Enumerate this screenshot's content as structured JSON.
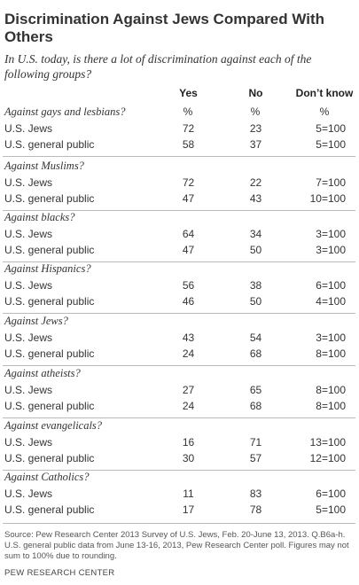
{
  "title": "Discrimination Against Jews Compared With Others",
  "subtitle": "In U.S. today, is there a lot of discrimination against each of the following groups?",
  "columns": {
    "yes": "Yes",
    "no": "No",
    "dk": "Don’t know"
  },
  "percent_row": {
    "yes": "%",
    "no": "%",
    "dk": "%"
  },
  "groups": [
    {
      "label": "Against gays and lesbians?",
      "rows": [
        {
          "name": "U.S. Jews",
          "yes": "72",
          "no": "23",
          "dk": "5=100"
        },
        {
          "name": "U.S. general public",
          "yes": "58",
          "no": "37",
          "dk": "5=100"
        }
      ]
    },
    {
      "label": "Against Muslims?",
      "rows": [
        {
          "name": "U.S. Jews",
          "yes": "72",
          "no": "22",
          "dk": "7=100"
        },
        {
          "name": "U.S. general public",
          "yes": "47",
          "no": "43",
          "dk": "10=100"
        }
      ]
    },
    {
      "label": "Against blacks?",
      "rows": [
        {
          "name": "U.S. Jews",
          "yes": "64",
          "no": "34",
          "dk": "3=100"
        },
        {
          "name": "U.S. general public",
          "yes": "47",
          "no": "50",
          "dk": "3=100"
        }
      ]
    },
    {
      "label": "Against Hispanics?",
      "rows": [
        {
          "name": "U.S. Jews",
          "yes": "56",
          "no": "38",
          "dk": "6=100"
        },
        {
          "name": "U.S. general public",
          "yes": "46",
          "no": "50",
          "dk": "4=100"
        }
      ]
    },
    {
      "label": "Against Jews?",
      "rows": [
        {
          "name": "U.S. Jews",
          "yes": "43",
          "no": "54",
          "dk": "3=100"
        },
        {
          "name": "U.S. general public",
          "yes": "24",
          "no": "68",
          "dk": "8=100"
        }
      ]
    },
    {
      "label": "Against atheists?",
      "rows": [
        {
          "name": "U.S. Jews",
          "yes": "27",
          "no": "65",
          "dk": "8=100"
        },
        {
          "name": "U.S. general public",
          "yes": "24",
          "no": "68",
          "dk": "8=100"
        }
      ]
    },
    {
      "label": "Against evangelicals?",
      "rows": [
        {
          "name": "U.S. Jews",
          "yes": "16",
          "no": "71",
          "dk": "13=100"
        },
        {
          "name": "U.S. general public",
          "yes": "30",
          "no": "57",
          "dk": "12=100"
        }
      ]
    },
    {
      "label": "Against Catholics?",
      "rows": [
        {
          "name": "U.S. Jews",
          "yes": "11",
          "no": "83",
          "dk": "6=100"
        },
        {
          "name": "U.S. general public",
          "yes": "17",
          "no": "78",
          "dk": "5=100"
        }
      ]
    }
  ],
  "source": "Source: Pew Research Center 2013 Survey of U.S. Jews, Feb. 20-June 13, 2013. Q.B6a-h. U.S. general public data from June 13-16, 2013, Pew Research Center poll. Figures may not sum to 100% due to rounding.",
  "footer": "PEW RESEARCH CENTER"
}
